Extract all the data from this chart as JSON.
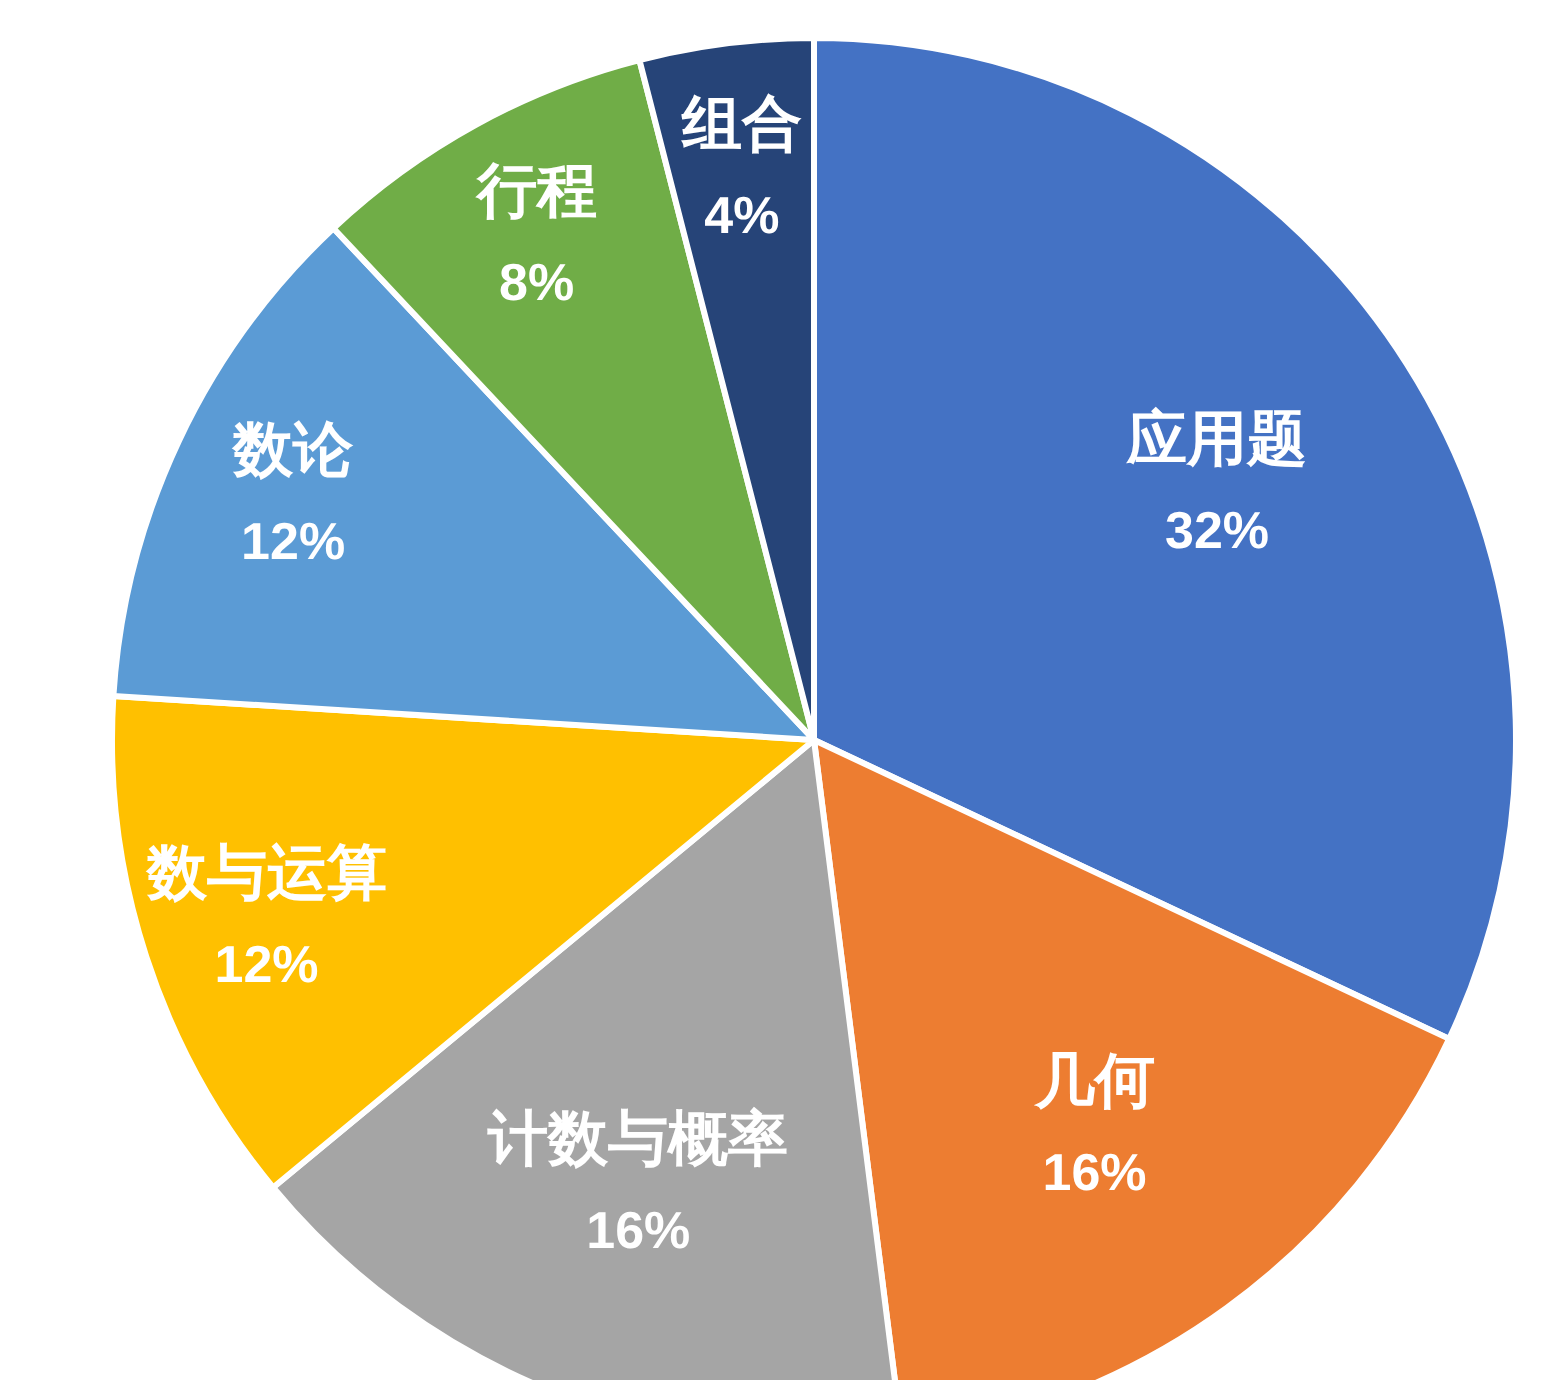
{
  "chart_data": {
    "type": "pie",
    "categories": [
      "应用题",
      "几何",
      "计数与概率",
      "数与运算",
      "数论",
      "行程",
      "组合"
    ],
    "values": [
      32,
      16,
      16,
      12,
      12,
      8,
      4
    ],
    "colors": [
      "#4472c4",
      "#ed7d31",
      "#a5a5a5",
      "#ffc000",
      "#5b9bd5",
      "#70ad47",
      "#264478"
    ],
    "value_labels": [
      "32%",
      "16%",
      "16%",
      "12%",
      "12%",
      "8%",
      "4%"
    ]
  }
}
